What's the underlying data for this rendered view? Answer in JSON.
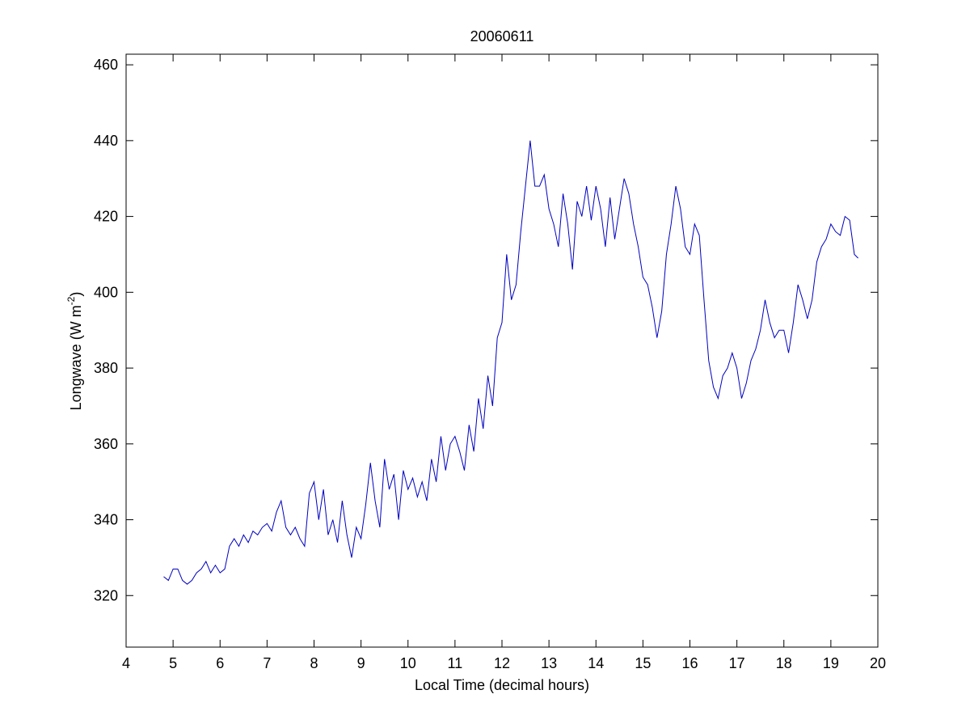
{
  "chart_data": {
    "type": "line",
    "title": "20060611",
    "xlabel": "Local Time (decimal hours)",
    "ylabel": {
      "text": "Longwave (W m",
      "superscript": "-2",
      "suffix": ")"
    },
    "xlim": [
      4,
      20
    ],
    "ylim": [
      306.4,
      462.8
    ],
    "xticks": [
      4,
      5,
      6,
      7,
      8,
      9,
      10,
      11,
      12,
      13,
      14,
      15,
      16,
      17,
      18,
      19,
      20
    ],
    "yticks": [
      320,
      340,
      360,
      380,
      400,
      420,
      440,
      460
    ],
    "grid": false,
    "x": [
      4.8,
      4.9,
      5.0,
      5.1,
      5.2,
      5.3,
      5.4,
      5.5,
      5.6,
      5.7,
      5.8,
      5.9,
      6.0,
      6.1,
      6.2,
      6.3,
      6.4,
      6.5,
      6.6,
      6.7,
      6.8,
      6.9,
      7.0,
      7.1,
      7.2,
      7.3,
      7.4,
      7.5,
      7.6,
      7.7,
      7.8,
      7.9,
      8.0,
      8.1,
      8.2,
      8.3,
      8.4,
      8.5,
      8.6,
      8.7,
      8.8,
      8.9,
      9.0,
      9.1,
      9.2,
      9.3,
      9.4,
      9.5,
      9.6,
      9.7,
      9.8,
      9.9,
      10.0,
      10.1,
      10.2,
      10.3,
      10.4,
      10.5,
      10.6,
      10.7,
      10.8,
      10.9,
      11.0,
      11.1,
      11.2,
      11.3,
      11.4,
      11.5,
      11.6,
      11.7,
      11.8,
      11.9,
      12.0,
      12.1,
      12.2,
      12.3,
      12.4,
      12.5,
      12.6,
      12.7,
      12.8,
      12.9,
      13.0,
      13.1,
      13.2,
      13.3,
      13.4,
      13.5,
      13.6,
      13.7,
      13.8,
      13.9,
      14.0,
      14.1,
      14.2,
      14.3,
      14.4,
      14.5,
      14.6,
      14.7,
      14.8,
      14.9,
      15.0,
      15.1,
      15.2,
      15.3,
      15.4,
      15.5,
      15.6,
      15.7,
      15.8,
      15.9,
      16.0,
      16.1,
      16.2,
      16.3,
      16.4,
      16.5,
      16.6,
      16.7,
      16.8,
      16.9,
      17.0,
      17.1,
      17.2,
      17.3,
      17.4,
      17.5,
      17.6,
      17.7,
      17.8,
      17.9,
      18.0,
      18.1,
      18.2,
      18.3,
      18.4,
      18.5,
      18.6,
      18.7,
      18.8,
      18.9,
      19.0,
      19.1,
      19.2,
      19.3,
      19.4,
      19.5,
      19.58
    ],
    "series": [
      {
        "color": "#0000bf",
        "values": [
          325,
          324,
          327,
          327,
          324,
          323,
          324,
          326,
          327,
          329,
          326,
          328,
          326,
          327,
          333,
          335,
          333,
          336,
          334,
          337,
          336,
          338,
          339,
          337,
          342,
          345,
          338,
          336,
          338,
          335,
          333,
          347,
          350,
          340,
          348,
          336,
          340,
          334,
          345,
          336,
          330,
          338,
          335,
          344,
          355,
          345,
          338,
          356,
          348,
          352,
          340,
          353,
          348,
          351,
          346,
          350,
          345,
          356,
          350,
          362,
          353,
          360,
          362,
          358,
          353,
          365,
          358,
          372,
          364,
          378,
          370,
          388,
          392,
          410,
          398,
          402,
          416,
          428,
          440,
          428,
          428,
          431,
          422,
          418,
          412,
          426,
          418,
          406,
          424,
          420,
          428,
          419,
          428,
          422,
          412,
          425,
          414,
          422,
          430,
          426,
          418,
          412,
          404,
          402,
          396,
          388,
          395,
          410,
          418,
          428,
          422,
          412,
          410,
          418,
          415,
          398,
          382,
          375,
          372,
          378,
          380,
          384,
          380,
          372,
          376,
          382,
          385,
          390,
          398,
          392,
          388,
          390,
          390,
          384,
          392,
          402,
          398,
          393,
          398,
          408,
          412,
          414,
          418,
          416,
          415,
          420,
          419,
          410,
          409
        ]
      }
    ]
  }
}
